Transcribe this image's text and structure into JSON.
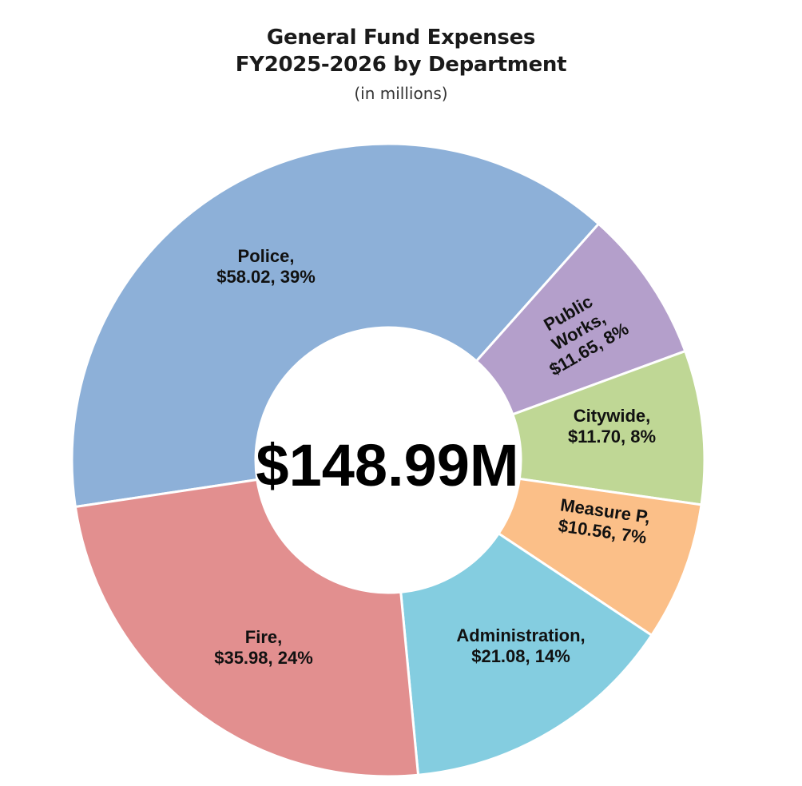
{
  "chart_data": {
    "type": "pie",
    "variant": "donut",
    "title_lines": [
      "General Fund Expenses",
      "FY2025-2026 by Department"
    ],
    "subtitle": "(in millions)",
    "center_label": "$148.99M",
    "categories": [
      "Police",
      "Public Works",
      "Citywide",
      "Measure P",
      "Administration",
      "Fire"
    ],
    "values": [
      58.02,
      11.65,
      11.7,
      10.56,
      21.08,
      35.98
    ],
    "percents": [
      "39%",
      "8%",
      "8%",
      "7%",
      "14%",
      "24%"
    ],
    "colors": [
      "#8db0d8",
      "#b49fcb",
      "#bfd795",
      "#fbbf88",
      "#84cde0",
      "#e28f8f"
    ],
    "labels": [
      [
        "Police,",
        "$58.02, 39%"
      ],
      [
        "Public",
        "Works,",
        "$11.65, 8%"
      ],
      [
        "Citywide,",
        "$11.70, 8%"
      ],
      [
        "Measure P,",
        "$10.56, 7%"
      ],
      [
        "Administration,",
        "$21.08, 14%"
      ],
      [
        "Fire,",
        "$35.98, 24%"
      ]
    ]
  }
}
